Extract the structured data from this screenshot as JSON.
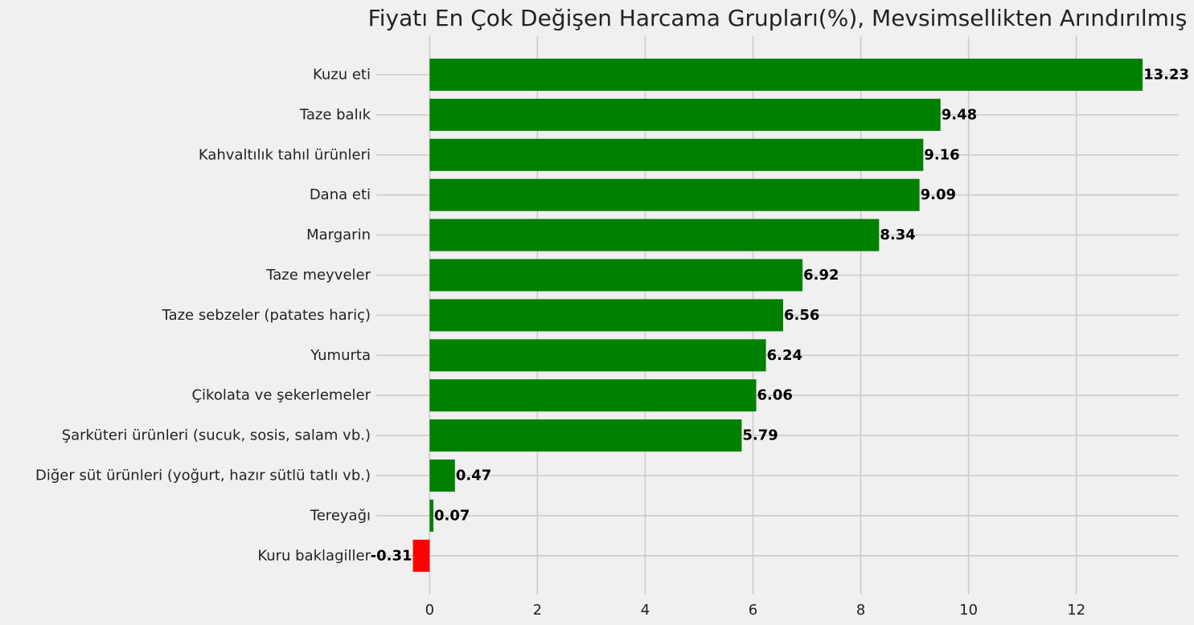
{
  "chart_data": {
    "type": "bar",
    "orientation": "horizontal",
    "title": "Fiyatı En Çok Değişen Harcama Grupları(%), Mevsimsellikten Arındırılmış",
    "xlabel": "",
    "ylabel": "",
    "categories": [
      "Kuzu eti",
      "Taze balık",
      "Kahvaltılık tahıl ürünleri",
      "Dana eti",
      "Margarin",
      "Taze meyveler",
      "Taze sebzeler (patates hariç)",
      "Yumurta",
      "Çikolata ve şekerlemeler",
      "Şarküteri ürünleri (sucuk, sosis, salam vb.)",
      "Diğer süt ürünleri (yoğurt, hazır sütlü tatlı vb.)",
      "Tereyağı",
      "Kuru baklagiller"
    ],
    "values": [
      13.23,
      9.48,
      9.16,
      9.09,
      8.34,
      6.92,
      6.56,
      6.24,
      6.06,
      5.79,
      0.47,
      0.07,
      -0.31
    ],
    "value_labels": [
      "13.23",
      "9.48",
      "9.16",
      "9.09",
      "8.34",
      "6.92",
      "6.56",
      "6.24",
      "6.06",
      "5.79",
      "0.47",
      "0.07",
      "-0.31"
    ],
    "xticks": [
      0,
      2,
      4,
      6,
      8,
      10,
      12
    ],
    "xlim": [
      -0.99,
      13.9
    ],
    "grid": true,
    "legend": "none",
    "colors": {
      "positive": "#008000",
      "negative": "#ff0000",
      "background": "#f0f0f0",
      "grid": "#cbcbcb",
      "text": "#222222"
    }
  }
}
